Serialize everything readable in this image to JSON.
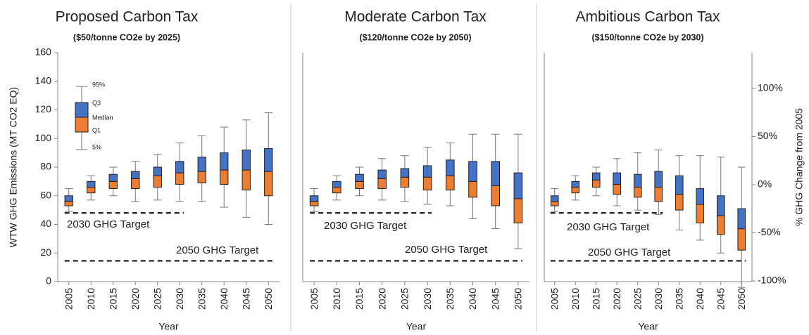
{
  "chart_data": [
    {
      "type": "box",
      "title": "Proposed Carbon Tax",
      "subtitle": "($50/tonne CO2e by 2025)",
      "x_label": "Year",
      "y_label": "WTW GHG Emissions (MT CO2 EQ)",
      "categories": [
        "2005",
        "2010",
        "2015",
        "2020",
        "2025",
        "2030",
        "2035",
        "2040",
        "2045",
        "2050"
      ],
      "whisker_low": [
        49,
        57,
        60,
        56,
        57,
        56,
        56,
        52,
        45,
        40
      ],
      "q1": [
        53,
        62,
        65,
        65,
        66,
        68,
        69,
        68,
        64,
        60
      ],
      "median": [
        56,
        66,
        70,
        72,
        74,
        76,
        77,
        78,
        78,
        77
      ],
      "q3": [
        60,
        70,
        75,
        77,
        80,
        84,
        87,
        90,
        92,
        93
      ],
      "whisker_high": [
        65,
        74,
        80,
        84,
        89,
        97,
        102,
        108,
        113,
        118
      ],
      "upper_color": "#4472c4",
      "lower_color": "#ed7d31",
      "ylim": [
        0,
        160
      ],
      "yticks": [
        0,
        20,
        40,
        60,
        80,
        100,
        120,
        140,
        160
      ],
      "key_labels": [
        "95%",
        "Q3",
        "Median",
        "Q1",
        "5%"
      ],
      "targets": [
        {
          "label": "2030 GHG Target",
          "value": 48
        },
        {
          "label": "2050 GHG Target",
          "value": 14.5
        }
      ]
    },
    {
      "type": "box",
      "title": "Moderate Carbon Tax",
      "subtitle": "($120/tonne CO2e by 2050)",
      "x_label": "Year",
      "categories": [
        "2005",
        "2010",
        "2015",
        "2020",
        "2025",
        "2030",
        "2035",
        "2040",
        "2045",
        "2050"
      ],
      "whisker_low": [
        49,
        57,
        60,
        57,
        56,
        54,
        53,
        44,
        37,
        23
      ],
      "q1": [
        53,
        62,
        65,
        65,
        66,
        64,
        64,
        59,
        53,
        41
      ],
      "median": [
        56,
        66,
        70,
        72,
        73,
        73,
        74,
        70,
        67,
        58
      ],
      "q3": [
        60,
        70,
        75,
        78,
        79,
        81,
        85,
        84,
        84,
        76
      ],
      "whisker_high": [
        65,
        74,
        80,
        86,
        88,
        94,
        97,
        103,
        103,
        103
      ],
      "upper_color": "#4472c4",
      "lower_color": "#ed7d31",
      "ylim": [
        0,
        160
      ],
      "targets": [
        {
          "label": "2030 GHG Target",
          "value": 48
        },
        {
          "label": "2050 GHG Target",
          "value": 14.5
        }
      ]
    },
    {
      "type": "box",
      "title": "Ambitious Carbon Tax",
      "subtitle": "($150/tonne CO2e by 2030)",
      "x_label": "Year",
      "y2_label": "% GHG Change from 2005",
      "categories": [
        "2005",
        "2010",
        "2015",
        "2020",
        "2025",
        "2030",
        "2035",
        "2040",
        "2045",
        "2050"
      ],
      "whisker_low": [
        49,
        57,
        60,
        53,
        50,
        47,
        36,
        29,
        20,
        -4
      ],
      "q1": [
        53,
        62,
        66,
        61,
        59,
        56,
        50,
        41,
        33,
        22
      ],
      "median": [
        56,
        66,
        71,
        68,
        66,
        66,
        61,
        54,
        46,
        37
      ],
      "q3": [
        60,
        70,
        76,
        76,
        75,
        77,
        74,
        65,
        60,
        51
      ],
      "whisker_high": [
        65,
        74,
        80,
        86,
        90,
        92,
        88,
        88,
        87,
        80
      ],
      "upper_color": "#4472c4",
      "lower_color": "#ed7d31",
      "ylim": [
        0,
        160
      ],
      "y2lim": [
        -100.7,
        137.2
      ],
      "y2ticks": [
        {
          "value": -100,
          "label": "-100%"
        },
        {
          "value": -50,
          "label": "-50%"
        },
        {
          "value": 0,
          "label": "0%"
        },
        {
          "value": 50,
          "label": "50%"
        },
        {
          "value": 100,
          "label": "100%"
        }
      ],
      "targets": [
        {
          "label": "2030 GHG Target",
          "value": 48
        },
        {
          "label": "2050 GHG Target",
          "value": 14.5
        }
      ]
    }
  ]
}
